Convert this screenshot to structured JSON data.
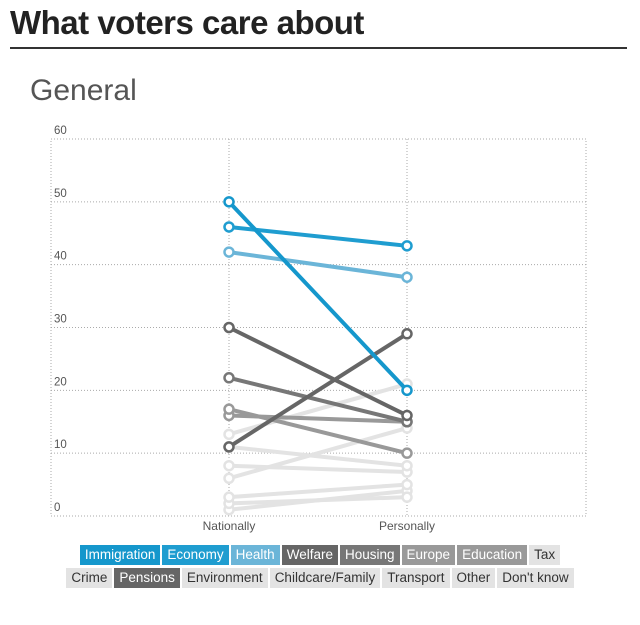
{
  "page": {
    "title": "What voters care about",
    "subtitle": "General"
  },
  "colors": {
    "grid": "#aaaaaa",
    "axis_text": "#555555"
  },
  "chart_data": {
    "type": "line",
    "title": "General",
    "categories": [
      "Nationally",
      "Personally"
    ],
    "ylim": [
      0,
      60
    ],
    "yticks": [
      0,
      10,
      20,
      30,
      40,
      50,
      60
    ],
    "grid": true,
    "series": [
      {
        "name": "Tax",
        "values": [
          1,
          4
        ],
        "color": "#e3e3e3",
        "text_color": "#333333"
      },
      {
        "name": "Crime",
        "values": [
          2,
          3
        ],
        "color": "#e3e3e3",
        "text_color": "#333333"
      },
      {
        "name": "Environment",
        "values": [
          3,
          5
        ],
        "color": "#e3e3e3",
        "text_color": "#333333"
      },
      {
        "name": "Childcare/Family",
        "values": [
          6,
          14
        ],
        "color": "#e3e3e3",
        "text_color": "#333333"
      },
      {
        "name": "Transport",
        "values": [
          8,
          7
        ],
        "color": "#e3e3e3",
        "text_color": "#333333"
      },
      {
        "name": "Other",
        "values": [
          11,
          8
        ],
        "color": "#e3e3e3",
        "text_color": "#333333"
      },
      {
        "name": "Don't know",
        "values": [
          13,
          21
        ],
        "color": "#e3e3e3",
        "text_color": "#333333"
      },
      {
        "name": "Europe",
        "values": [
          16,
          15
        ],
        "color": "#999999",
        "text_color": "#ffffff"
      },
      {
        "name": "Education",
        "values": [
          17,
          10
        ],
        "color": "#999999",
        "text_color": "#ffffff"
      },
      {
        "name": "Housing",
        "values": [
          22,
          15
        ],
        "color": "#777777",
        "text_color": "#ffffff"
      },
      {
        "name": "Pensions",
        "values": [
          11,
          29
        ],
        "color": "#666666",
        "text_color": "#ffffff"
      },
      {
        "name": "Welfare",
        "values": [
          30,
          16
        ],
        "color": "#666666",
        "text_color": "#ffffff"
      },
      {
        "name": "Health",
        "values": [
          42,
          38
        ],
        "color": "#6bb5d8",
        "text_color": "#ffffff"
      },
      {
        "name": "Economy",
        "values": [
          46,
          43
        ],
        "color": "#1f9dd0",
        "text_color": "#ffffff"
      },
      {
        "name": "Immigration",
        "values": [
          50,
          20
        ],
        "color": "#1597cc",
        "text_color": "#ffffff"
      }
    ]
  },
  "legend": [
    "Immigration",
    "Economy",
    "Health",
    "Welfare",
    "Housing",
    "Europe",
    "Education",
    "Tax",
    "Crime",
    "Pensions",
    "Environment",
    "Childcare/Family",
    "Transport",
    "Other",
    "Don't know"
  ]
}
